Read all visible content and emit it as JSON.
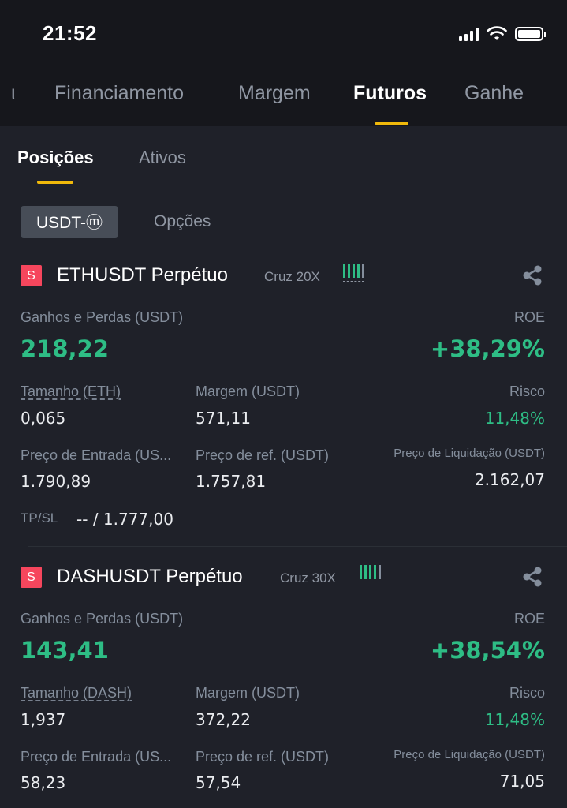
{
  "status_bar": {
    "time": "21:52"
  },
  "main_tabs": [
    {
      "label": "ι"
    },
    {
      "label": "Financiamento"
    },
    {
      "label": "Margem"
    },
    {
      "label": "Futuros"
    },
    {
      "label": "Ganhe"
    }
  ],
  "sub_tabs": [
    {
      "label": "Posições"
    },
    {
      "label": "Ativos"
    }
  ],
  "filters": {
    "selected": "USDT-ⓜ",
    "other": "Opções"
  },
  "colors": {
    "accent": "#f0b90b",
    "profit": "#2ebd85",
    "short_badge": "#f6465d"
  },
  "positions": [
    {
      "side_badge": "S",
      "symbol": "ETHUSDT Perpétuo",
      "margin_mode": "Cruz 20X",
      "pnl_label": "Ganhos e Perdas (USDT)",
      "pnl_value": "218,22",
      "roe_label": "ROE",
      "roe_value": "+38,29%",
      "size_label": "Tamanho (ETH)",
      "size_value": "0,065",
      "margin_label": "Margem (USDT)",
      "margin_value": "571,11",
      "risk_label": "Risco",
      "risk_value": "11,48%",
      "entry_label": "Preço de Entrada (US...",
      "entry_value": "1.790,89",
      "mark_label": "Preço de ref. (USDT)",
      "mark_value": "1.757,81",
      "liq_label": "Preço de Liquidação (USDT)",
      "liq_value": "2.162,07",
      "tpsl_label": "TP/SL",
      "tpsl_value": "-- / 1.777,00"
    },
    {
      "side_badge": "S",
      "symbol": "DASHUSDT Perpétuo",
      "margin_mode": "Cruz 30X",
      "pnl_label": "Ganhos e Perdas (USDT)",
      "pnl_value": "143,41",
      "roe_label": "ROE",
      "roe_value": "+38,54%",
      "size_label": "Tamanho (DASH)",
      "size_value": "1,937",
      "margin_label": "Margem (USDT)",
      "margin_value": "372,22",
      "risk_label": "Risco",
      "risk_value": "11,48%",
      "entry_label": "Preço de Entrada (US...",
      "entry_value": "58,23",
      "mark_label": "Preço de ref. (USDT)",
      "mark_value": "57,54",
      "liq_label": "Preço de Liquidação (USDT)",
      "liq_value": "71,05"
    }
  ]
}
